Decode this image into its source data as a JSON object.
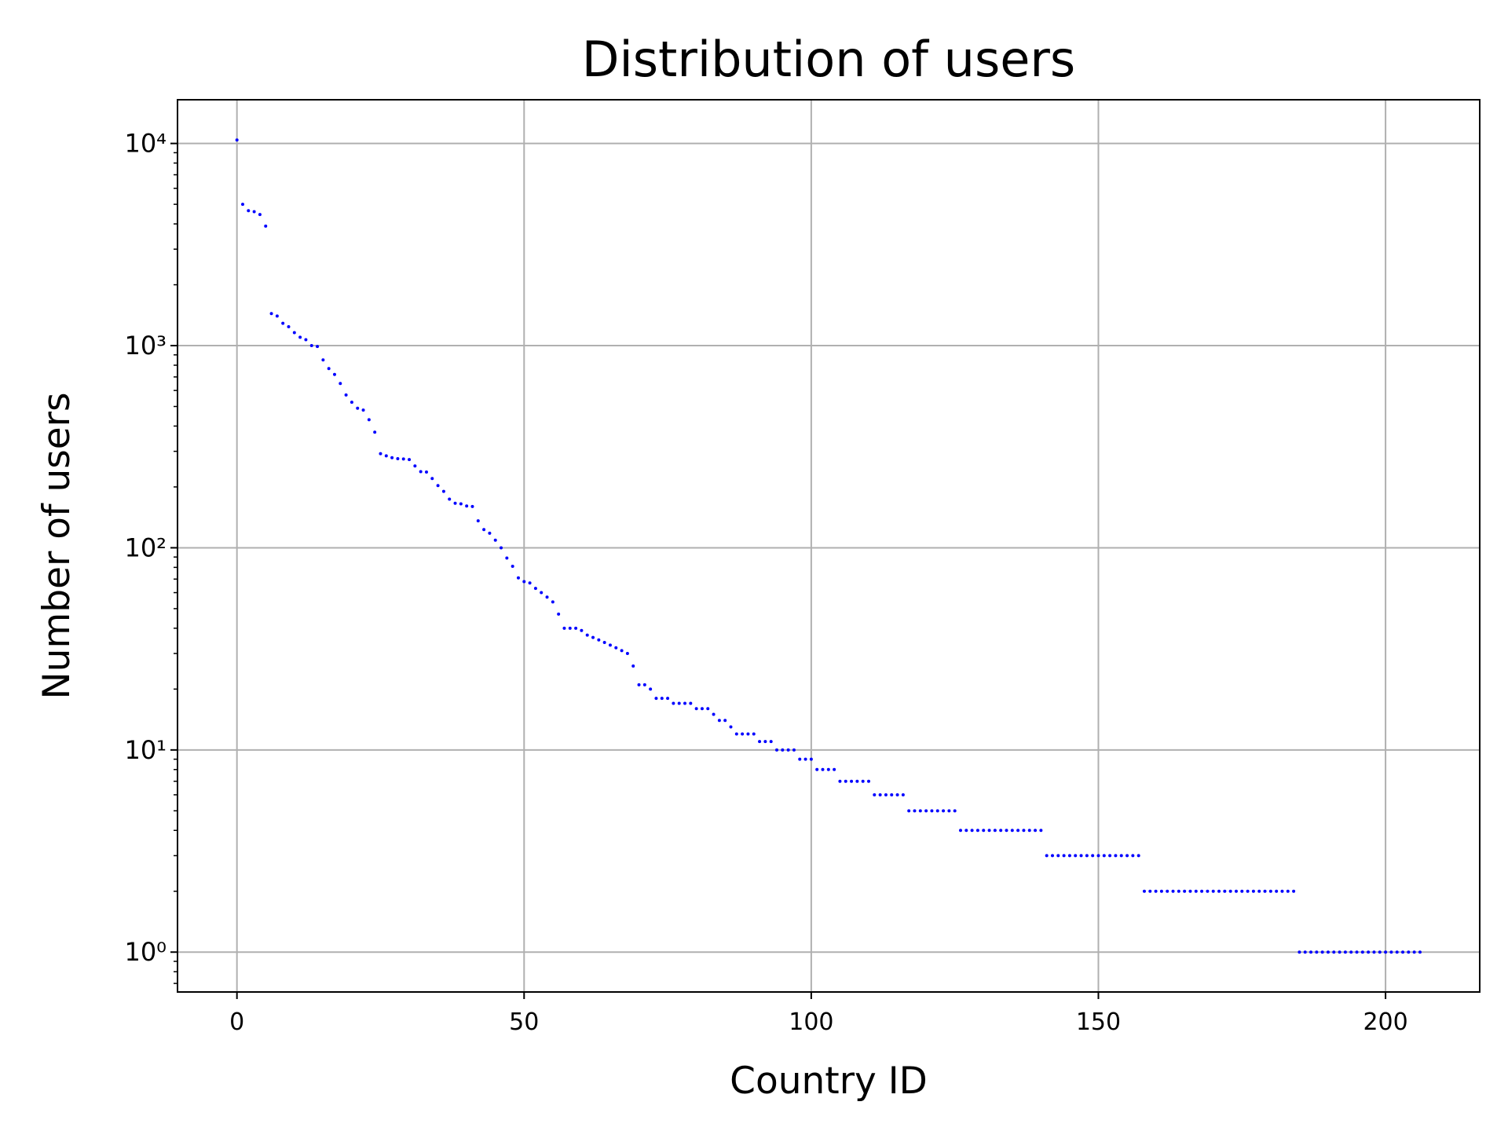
{
  "chart_data": {
    "type": "scatter",
    "title": "Distribution of users",
    "xlabel": "Country ID",
    "ylabel": "Number of users",
    "color": "blue",
    "yscale": "log",
    "grid": true,
    "xlim": [
      -10.35,
      216.4
    ],
    "ylim": [
      0.635,
      16450
    ],
    "xticks": [
      0,
      50,
      100,
      150,
      200
    ],
    "yticks": [
      {
        "value": 1,
        "label": "10⁰"
      },
      {
        "value": 10,
        "label": "10¹"
      },
      {
        "value": 100,
        "label": "10²"
      },
      {
        "value": 1000,
        "label": "10³"
      },
      {
        "value": 10000,
        "label": "10⁴"
      }
    ],
    "values": [
      10400,
      5000,
      4650,
      4600,
      4450,
      3900,
      1440,
      1400,
      1290,
      1240,
      1160,
      1100,
      1070,
      1000,
      990,
      850,
      770,
      720,
      650,
      570,
      525,
      490,
      480,
      430,
      373,
      292,
      285,
      279,
      276,
      275,
      273,
      254,
      238,
      237,
      220,
      203,
      190,
      174,
      166,
      165,
      161,
      160,
      136,
      123,
      118,
      109,
      100,
      89,
      81,
      71,
      68,
      67,
      63,
      60,
      57,
      54,
      47,
      40,
      40,
      40,
      39,
      37,
      36,
      35,
      34,
      33,
      32,
      31,
      30,
      26,
      21,
      21,
      20,
      18,
      18,
      18,
      17,
      17,
      17,
      17,
      16,
      16,
      16,
      15,
      14,
      14,
      13,
      12,
      12,
      12,
      12,
      11,
      11,
      11,
      10,
      10,
      10,
      10,
      9,
      9,
      9,
      8,
      8,
      8,
      8,
      7,
      7,
      7,
      7,
      7,
      7,
      6,
      6,
      6,
      6,
      6,
      6,
      5,
      5,
      5,
      5,
      5,
      5,
      5,
      5,
      5,
      4,
      4,
      4,
      4,
      4,
      4,
      4,
      4,
      4,
      4,
      4,
      4,
      4,
      4,
      4,
      3,
      3,
      3,
      3,
      3,
      3,
      3,
      3,
      3,
      3,
      3,
      3,
      3,
      3,
      3,
      3,
      3,
      2,
      2,
      2,
      2,
      2,
      2,
      2,
      2,
      2,
      2,
      2,
      2,
      2,
      2,
      2,
      2,
      2,
      2,
      2,
      2,
      2,
      2,
      2,
      2,
      2,
      2,
      2,
      1,
      1,
      1,
      1,
      1,
      1,
      1,
      1,
      1,
      1,
      1,
      1,
      1,
      1,
      1,
      1,
      1,
      1,
      1,
      1,
      1,
      1
    ]
  }
}
